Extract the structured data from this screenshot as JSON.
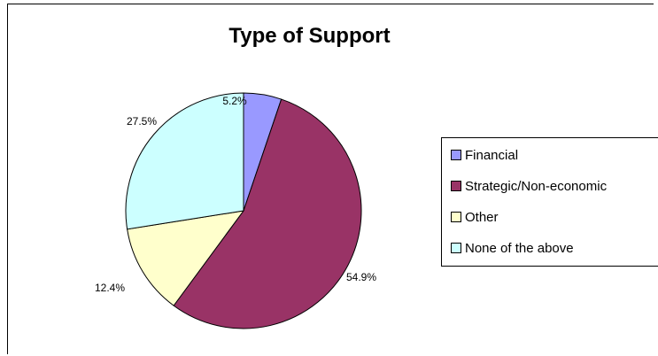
{
  "chart_data": {
    "type": "pie",
    "title": "Type of Support",
    "legend_position": "right",
    "slices": [
      {
        "label": "Financial",
        "value": 5.2,
        "display": "5.2%",
        "color": "#9999FF"
      },
      {
        "label": "Strategic/Non-economic",
        "value": 54.9,
        "display": "54.9%",
        "color": "#993366"
      },
      {
        "label": "Other",
        "value": 12.4,
        "display": "12.4%",
        "color": "#FFFFCC"
      },
      {
        "label": "None of the above",
        "value": 27.5,
        "display": "27.5%",
        "color": "#CCFFFF"
      }
    ]
  }
}
